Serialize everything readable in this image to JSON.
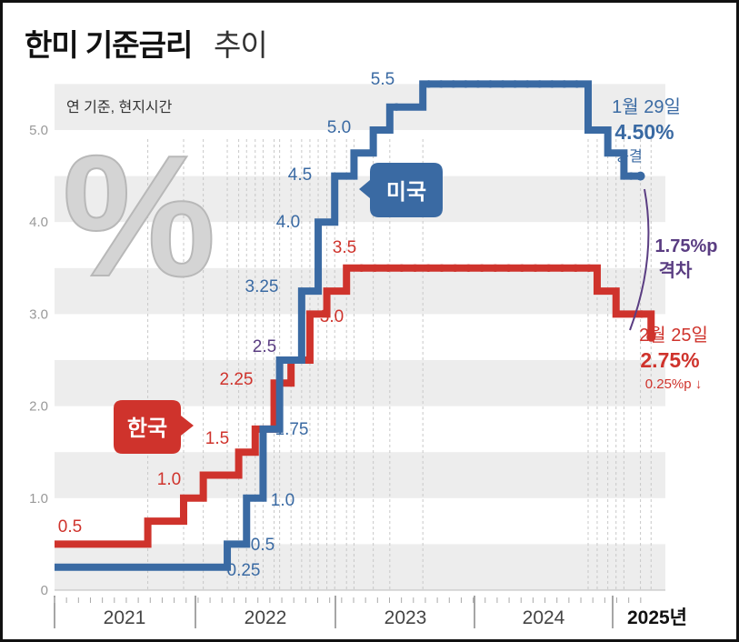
{
  "title": "한미 기준금리",
  "subtitle": "추이",
  "note": "연 기준, 현지시간",
  "colors": {
    "us": "#3a6aa3",
    "kr": "#cf332c",
    "gap": "#5a3d82",
    "band": "#ededed"
  },
  "badges": {
    "us": "미국",
    "kr": "한국"
  },
  "gap_label": {
    "value": "1.75%p",
    "text": "격차"
  },
  "us_callout": {
    "date": "1월 29일",
    "rate": "4.50%",
    "status": "동결"
  },
  "kr_callout": {
    "date": "2월 25일",
    "rate": "2.75%",
    "change": "0.25%p ↓"
  },
  "chart_data": {
    "type": "line",
    "ylim": [
      0,
      5.5
    ],
    "yticks": [
      {
        "v": 0,
        "label": "0"
      },
      {
        "v": 1,
        "label": "1.0"
      },
      {
        "v": 2,
        "label": "2.0"
      },
      {
        "v": 3,
        "label": "3.0"
      },
      {
        "v": 4,
        "label": "4.0"
      },
      {
        "v": 5,
        "label": "5.0"
      }
    ],
    "years": [
      "2021",
      "2022",
      "2023",
      "2024",
      "2025년"
    ],
    "series": [
      {
        "name": "미국",
        "points": [
          {
            "x": "2021-01-01",
            "y": 0.25
          },
          {
            "x": "2022-03-16",
            "y": 0.5,
            "label": "0.5"
          },
          {
            "x": "2022-05-04",
            "y": 1.0,
            "label": "1.0"
          },
          {
            "x": "2022-06-15",
            "y": 1.75,
            "label": "1.75"
          },
          {
            "x": "2022-07-27",
            "y": 2.5
          },
          {
            "x": "2022-09-21",
            "y": 3.25,
            "label": "3.25"
          },
          {
            "x": "2022-11-02",
            "y": 4.0,
            "label": "4.0"
          },
          {
            "x": "2022-12-14",
            "y": 4.5,
            "label": "4.5"
          },
          {
            "x": "2023-02-01",
            "y": 4.75
          },
          {
            "x": "2023-03-22",
            "y": 5.0,
            "label": "5.0"
          },
          {
            "x": "2023-05-03",
            "y": 5.25
          },
          {
            "x": "2023-07-26",
            "y": 5.5,
            "label": "5.5"
          },
          {
            "x": "2024-09-18",
            "y": 5.0
          },
          {
            "x": "2024-11-07",
            "y": 4.75
          },
          {
            "x": "2024-12-18",
            "y": 4.5
          },
          {
            "x": "2025-01-29",
            "y": 4.5
          }
        ],
        "start_label": "0.25",
        "end": "2025-01-29"
      },
      {
        "name": "한국",
        "points": [
          {
            "x": "2021-01-01",
            "y": 0.5,
            "label": "0.5"
          },
          {
            "x": "2021-08-26",
            "y": 0.75
          },
          {
            "x": "2021-11-25",
            "y": 1.0,
            "label": "1.0"
          },
          {
            "x": "2022-01-14",
            "y": 1.25
          },
          {
            "x": "2022-04-14",
            "y": 1.5,
            "label": "1.5"
          },
          {
            "x": "2022-05-26",
            "y": 1.75
          },
          {
            "x": "2022-07-13",
            "y": 2.25,
            "label": "2.25"
          },
          {
            "x": "2022-08-25",
            "y": 2.5,
            "label": "2.5"
          },
          {
            "x": "2022-10-12",
            "y": 3.0,
            "label": "3.0"
          },
          {
            "x": "2022-11-24",
            "y": 3.25
          },
          {
            "x": "2023-01-13",
            "y": 3.5,
            "label": "3.5"
          },
          {
            "x": "2024-10-11",
            "y": 3.25
          },
          {
            "x": "2024-11-28",
            "y": 3.0
          },
          {
            "x": "2025-02-25",
            "y": 2.75
          }
        ],
        "end": "2025-02-25"
      }
    ]
  }
}
